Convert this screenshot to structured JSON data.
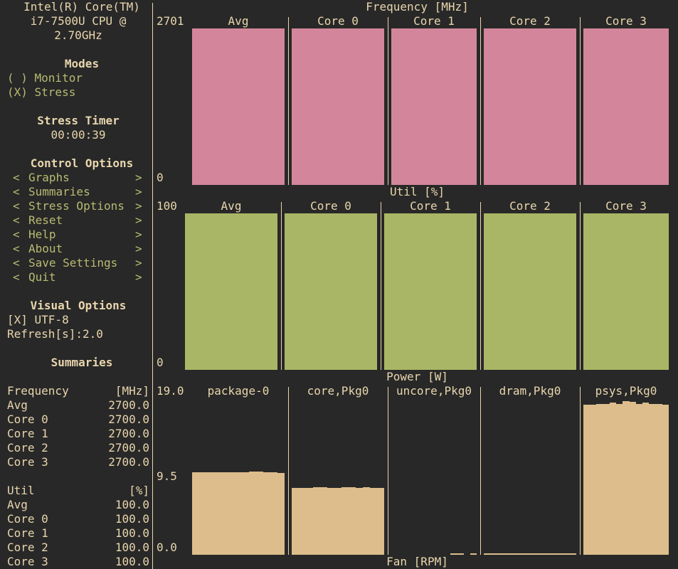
{
  "sidebar": {
    "cpu_line1": "Intel(R) Core(TM)",
    "cpu_line2": "i7-7500U CPU @",
    "cpu_line3": "2.70GHz",
    "modes_title": "Modes",
    "mode_monitor": "( ) Monitor",
    "mode_stress": "(X) Stress",
    "timer_title": "Stress Timer",
    "timer_value": "00:00:39",
    "control_title": "Control Options",
    "menu": [
      {
        "label": "Graphs"
      },
      {
        "label": "Summaries"
      },
      {
        "label": "Stress Options"
      },
      {
        "label": "Reset"
      },
      {
        "label": "Help"
      },
      {
        "label": "About"
      },
      {
        "label": "Save Settings"
      },
      {
        "label": "Quit"
      }
    ],
    "visual_title": "Visual Options",
    "utf8": "[X] UTF-8",
    "refresh": "Refresh[s]:2.0",
    "summaries_title": "Summaries"
  },
  "summary": {
    "frequency": {
      "label": "Frequency",
      "unit": "[MHz]",
      "rows": [
        {
          "name": "Avg",
          "value": "2700.0"
        },
        {
          "name": "Core 0",
          "value": "2700.0"
        },
        {
          "name": "Core 1",
          "value": "2700.0"
        },
        {
          "name": "Core 2",
          "value": "2700.0"
        },
        {
          "name": "Core 3",
          "value": "2700.0"
        }
      ]
    },
    "util": {
      "label": "Util",
      "unit": "[%]",
      "rows": [
        {
          "name": "Avg",
          "value": "100.0"
        },
        {
          "name": "Core 0",
          "value": "100.0"
        },
        {
          "name": "Core 1",
          "value": "100.0"
        },
        {
          "name": "Core 2",
          "value": "100.0"
        },
        {
          "name": "Core 3",
          "value": "100.0"
        }
      ]
    }
  },
  "graphs": {
    "frequency": {
      "title": "Frequency [MHz]",
      "max_label": "2701",
      "min_label": "0",
      "columns": [
        "Avg",
        "Core 0",
        "Core 1",
        "Core 2",
        "Core 3"
      ],
      "fill": [
        1.0,
        1.0,
        1.0,
        1.0,
        1.0
      ],
      "color": "#d3869b"
    },
    "util": {
      "title": "Util [%]",
      "max_label": "100",
      "min_label": "0",
      "columns": [
        "Avg",
        "Core 0",
        "Core 1",
        "Core 2",
        "Core 3"
      ],
      "fill": [
        1.0,
        1.0,
        1.0,
        1.0,
        1.0
      ],
      "color": "#a9b665"
    },
    "power": {
      "title": "Power [W]",
      "max_label": "19.0",
      "mid_label": "9.5",
      "min_label": "0.0",
      "columns": [
        "package-0",
        "core,Pkg0",
        "uncore,Pkg0",
        "dram,Pkg0",
        "psys,Pkg0"
      ],
      "color": "#ddbd8b",
      "series": [
        [
          9.5,
          9.5,
          9.5,
          9.5,
          9.5,
          9.5,
          9.5,
          9.5,
          9.6,
          9.6,
          9.5,
          9.5,
          9.4
        ],
        [
          7.7,
          7.7,
          7.7,
          7.8,
          7.8,
          7.7,
          7.7,
          7.8,
          7.8,
          7.7,
          7.8,
          7.7,
          7.7
        ],
        [
          0.0,
          0.0,
          0.0,
          0.0,
          0.0,
          0.0,
          0.0,
          0.0,
          0.0,
          0.1,
          0.1,
          0.0,
          0.1
        ],
        [
          0.1,
          0.1,
          0.1,
          0.1,
          0.2,
          0.2,
          0.1,
          0.1,
          0.2,
          0.2,
          0.1,
          0.2,
          0.1
        ],
        [
          17.3,
          17.3,
          17.4,
          17.4,
          17.5,
          17.4,
          17.7,
          17.6,
          17.4,
          17.5,
          17.4,
          17.4,
          17.3
        ]
      ]
    },
    "fan": {
      "title": "Fan [RPM]"
    }
  }
}
